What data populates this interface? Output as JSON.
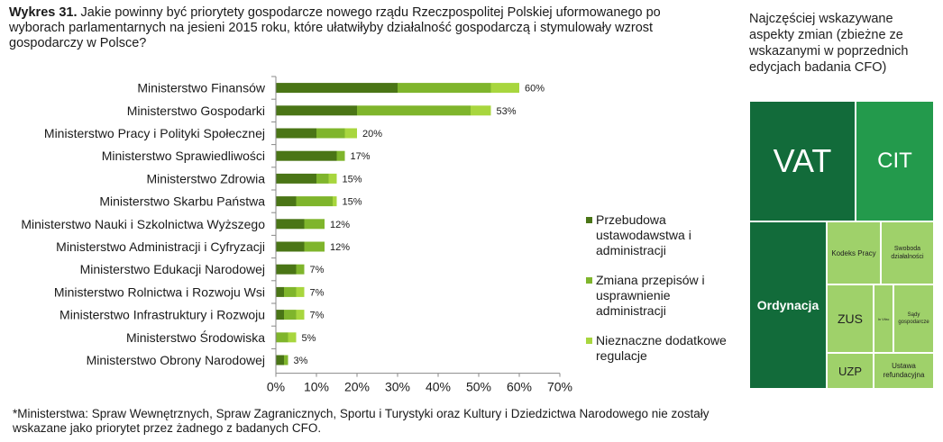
{
  "title": {
    "label": "Wykres 31.",
    "text": "Jakie powinny być priorytety gospodarcze nowego rządu Rzeczpospolitej Polskiej uformowanego po wyborach parlamentarnych na jesieni 2015 roku, które ułatwiłyby działalność gospodarczą i stymulowały wzrost gospodarczy w Polsce?"
  },
  "chart_data": {
    "type": "bar",
    "orientation": "horizontal",
    "stacked": true,
    "categories": [
      "Ministerstwo Finansów",
      "Ministerstwo Gospodarki",
      "Ministerstwo Pracy i Polityki Społecznej",
      "Ministerstwo Sprawiedliwości",
      "Ministerstwo Zdrowia",
      "Ministerstwo Skarbu Państwa",
      "Ministerstwo Nauki i Szkolnictwa Wyższego",
      "Ministerstwo Administracji i Cyfryzacji",
      "Ministerstwo Edukacji Narodowej",
      "Ministerstwo Rolnictwa i Rozwoju Wsi",
      "Ministerstwo Infrastruktury i Rozwoju",
      "Ministerstwo Środowiska",
      "Ministerstwo Obrony Narodowej"
    ],
    "series": [
      {
        "name": "Przebudowa ustawodawstwa i administracji",
        "color": "#4a7516",
        "values": [
          30,
          20,
          10,
          15,
          10,
          5,
          7,
          7,
          5,
          2,
          2,
          0,
          2
        ]
      },
      {
        "name": "Zmiana przepisów i usprawnienie administracji",
        "color": "#7fb52c",
        "values": [
          23,
          28,
          7,
          2,
          3,
          9,
          5,
          5,
          2,
          3,
          3,
          3,
          1
        ]
      },
      {
        "name": "Nieznaczne dodatkowe regulacje",
        "color": "#a8d63e",
        "values": [
          7,
          5,
          3,
          0,
          2,
          1,
          0,
          0,
          0,
          2,
          2,
          2,
          0
        ]
      }
    ],
    "totals_labels": [
      "60%",
      "53%",
      "20%",
      "17%",
      "15%",
      "15%",
      "12%",
      "12%",
      "7%",
      "7%",
      "7%",
      "5%",
      "3%"
    ],
    "xlim": [
      0,
      70
    ],
    "xticks": [
      "0%",
      "10%",
      "20%",
      "30%",
      "40%",
      "50%",
      "60%",
      "70%"
    ],
    "legend_position": "right"
  },
  "side": {
    "title": "Najczęściej wskazywane aspekty zmian (zbieżne ze wskazanymi w poprzednich edycjach badania CFO)",
    "treemap": [
      {
        "label": "VAT",
        "color": "#126b3a"
      },
      {
        "label": "CIT",
        "color": "#239a4c"
      },
      {
        "label": "Ordynacja",
        "color": "#126b3a"
      },
      {
        "label": "Kodeks Pracy",
        "color": "#9fd16a"
      },
      {
        "label": "Swoboda działalności",
        "color": "#9fd16a"
      },
      {
        "label": "ZUS",
        "color": "#9fd16a"
      },
      {
        "label": "In Vitro",
        "color": "#9fd16a"
      },
      {
        "label": "Sądy gospodarcze",
        "color": "#9fd16a"
      },
      {
        "label": "UZP",
        "color": "#9fd16a"
      },
      {
        "label": "Ustawa refundacyjna",
        "color": "#9fd16a"
      }
    ]
  },
  "footnote": "*Ministerstwa: Spraw Wewnętrznych, Spraw Zagranicznych, Sportu i Turystyki oraz Kultury i Dziedzictwa Narodowego nie zostały wskazane jako priorytet przez żadnego z badanych CFO."
}
